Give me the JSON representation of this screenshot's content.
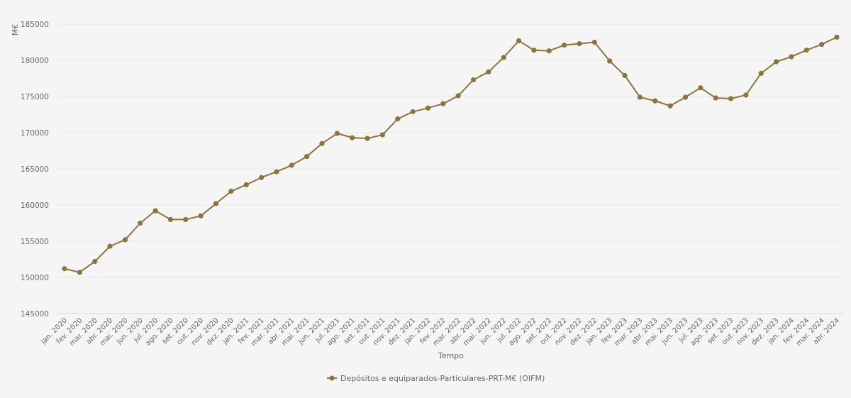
{
  "chart_data": {
    "type": "line",
    "title": "",
    "xlabel": "Tempo",
    "ylabel": "M€",
    "ylim": [
      145000,
      185000
    ],
    "y_ticks": [
      145000,
      150000,
      155000,
      160000,
      165000,
      170000,
      175000,
      180000,
      185000
    ],
    "grid": true,
    "legend_position": "bottom-center",
    "x": [
      "jan. 2020",
      "fev. 2020",
      "mar. 2020",
      "abr. 2020",
      "mai. 2020",
      "jun. 2020",
      "jul. 2020",
      "ago. 2020",
      "set. 2020",
      "out. 2020",
      "nov. 2020",
      "dez. 2020",
      "jan. 2021",
      "fev. 2021",
      "mar. 2021",
      "abr. 2021",
      "mai. 2021",
      "jun. 2021",
      "jul. 2021",
      "ago. 2021",
      "set. 2021",
      "out. 2021",
      "nov. 2021",
      "dez. 2021",
      "jan. 2022",
      "fev. 2022",
      "mar. 2022",
      "abr. 2022",
      "mai. 2022",
      "jun. 2022",
      "jul. 2022",
      "ago. 2022",
      "set. 2022",
      "out. 2022",
      "nov. 2022",
      "dez. 2022",
      "jan. 2023",
      "fev. 2023",
      "mar. 2023",
      "abr. 2023",
      "mai. 2023",
      "jun. 2023",
      "jul. 2023",
      "ago. 2023",
      "set. 2023",
      "out. 2023",
      "nov. 2023",
      "dez. 2023",
      "jan. 2024",
      "fev. 2024",
      "mar. 2024",
      "abr. 2024"
    ],
    "series": [
      {
        "name": "Depósitos e equiparados-Particulares-PRT-M€ (OIFM)",
        "color": "#8c7440",
        "values": [
          151200,
          150700,
          152200,
          154300,
          155200,
          157500,
          159200,
          158000,
          158000,
          158500,
          160200,
          161900,
          162800,
          163800,
          164600,
          165500,
          166700,
          168500,
          169900,
          169300,
          169200,
          169700,
          171900,
          172900,
          173400,
          174000,
          175100,
          177300,
          178400,
          180400,
          182700,
          181400,
          181300,
          182100,
          182300,
          182500,
          179900,
          177900,
          174900,
          174400,
          173700,
          174900,
          176200,
          174800,
          174700,
          175200,
          178200,
          179800,
          180500,
          181400,
          182200,
          183200
        ]
      }
    ]
  }
}
